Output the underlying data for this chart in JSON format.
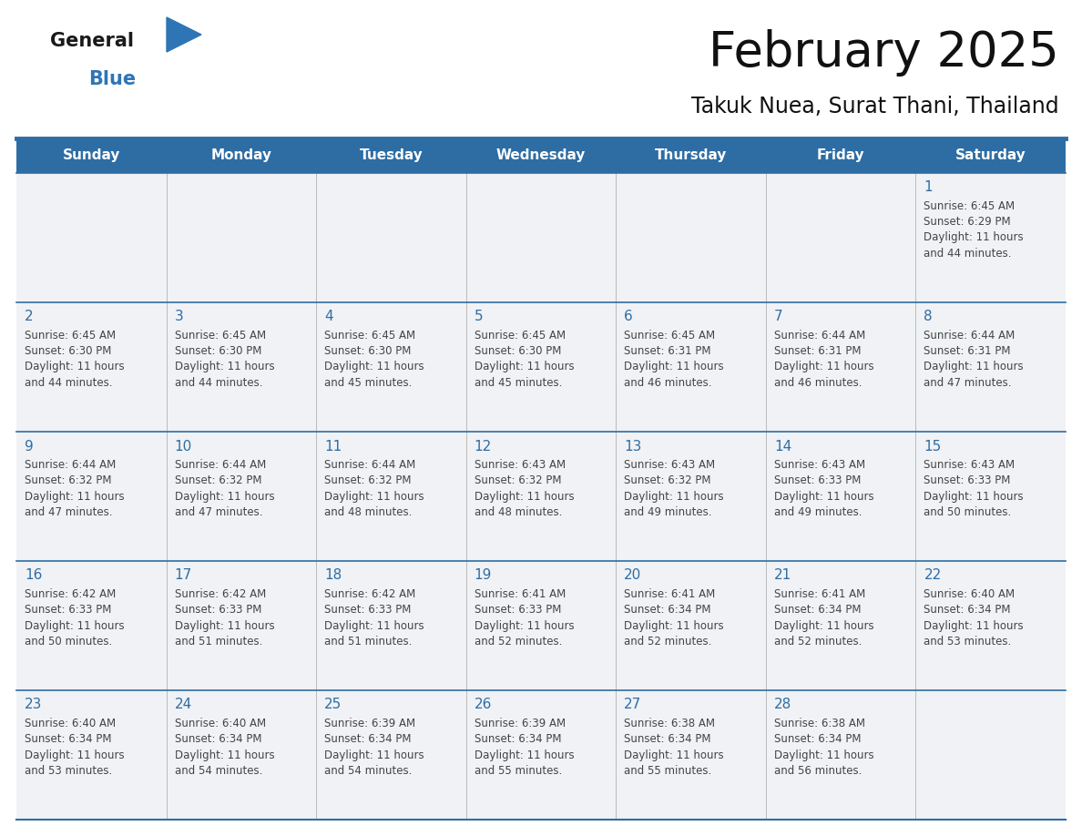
{
  "title": "February 2025",
  "subtitle": "Takuk Nuea, Surat Thani, Thailand",
  "header_bg": "#2E6DA4",
  "header_text": "#FFFFFF",
  "cell_bg": "#F0F2F5",
  "cell_bg_white": "#FFFFFF",
  "day_headers": [
    "Sunday",
    "Monday",
    "Tuesday",
    "Wednesday",
    "Thursday",
    "Friday",
    "Saturday"
  ],
  "grid_line_color": "#2E6DA4",
  "day_num_color": "#2E6DA4",
  "info_color": "#444444",
  "logo_general_color": "#1a1a1a",
  "logo_blue_color": "#2E75B6",
  "calendar_data": [
    [
      null,
      null,
      null,
      null,
      null,
      null,
      1
    ],
    [
      2,
      3,
      4,
      5,
      6,
      7,
      8
    ],
    [
      9,
      10,
      11,
      12,
      13,
      14,
      15
    ],
    [
      16,
      17,
      18,
      19,
      20,
      21,
      22
    ],
    [
      23,
      24,
      25,
      26,
      27,
      28,
      null
    ]
  ],
  "sunrise_data": {
    "1": "6:45 AM",
    "2": "6:45 AM",
    "3": "6:45 AM",
    "4": "6:45 AM",
    "5": "6:45 AM",
    "6": "6:45 AM",
    "7": "6:44 AM",
    "8": "6:44 AM",
    "9": "6:44 AM",
    "10": "6:44 AM",
    "11": "6:44 AM",
    "12": "6:43 AM",
    "13": "6:43 AM",
    "14": "6:43 AM",
    "15": "6:43 AM",
    "16": "6:42 AM",
    "17": "6:42 AM",
    "18": "6:42 AM",
    "19": "6:41 AM",
    "20": "6:41 AM",
    "21": "6:41 AM",
    "22": "6:40 AM",
    "23": "6:40 AM",
    "24": "6:40 AM",
    "25": "6:39 AM",
    "26": "6:39 AM",
    "27": "6:38 AM",
    "28": "6:38 AM"
  },
  "sunset_data": {
    "1": "6:29 PM",
    "2": "6:30 PM",
    "3": "6:30 PM",
    "4": "6:30 PM",
    "5": "6:30 PM",
    "6": "6:31 PM",
    "7": "6:31 PM",
    "8": "6:31 PM",
    "9": "6:32 PM",
    "10": "6:32 PM",
    "11": "6:32 PM",
    "12": "6:32 PM",
    "13": "6:32 PM",
    "14": "6:33 PM",
    "15": "6:33 PM",
    "16": "6:33 PM",
    "17": "6:33 PM",
    "18": "6:33 PM",
    "19": "6:33 PM",
    "20": "6:34 PM",
    "21": "6:34 PM",
    "22": "6:34 PM",
    "23": "6:34 PM",
    "24": "6:34 PM",
    "25": "6:34 PM",
    "26": "6:34 PM",
    "27": "6:34 PM",
    "28": "6:34 PM"
  },
  "daylight_data": {
    "1": "44 minutes.",
    "2": "44 minutes.",
    "3": "44 minutes.",
    "4": "45 minutes.",
    "5": "45 minutes.",
    "6": "46 minutes.",
    "7": "46 minutes.",
    "8": "47 minutes.",
    "9": "47 minutes.",
    "10": "47 minutes.",
    "11": "48 minutes.",
    "12": "48 minutes.",
    "13": "49 minutes.",
    "14": "49 minutes.",
    "15": "50 minutes.",
    "16": "50 minutes.",
    "17": "51 minutes.",
    "18": "51 minutes.",
    "19": "52 minutes.",
    "20": "52 minutes.",
    "21": "52 minutes.",
    "22": "53 minutes.",
    "23": "53 minutes.",
    "24": "54 minutes.",
    "25": "54 minutes.",
    "26": "55 minutes.",
    "27": "55 minutes.",
    "28": "56 minutes."
  },
  "fig_width": 11.88,
  "fig_height": 9.18,
  "dpi": 100
}
